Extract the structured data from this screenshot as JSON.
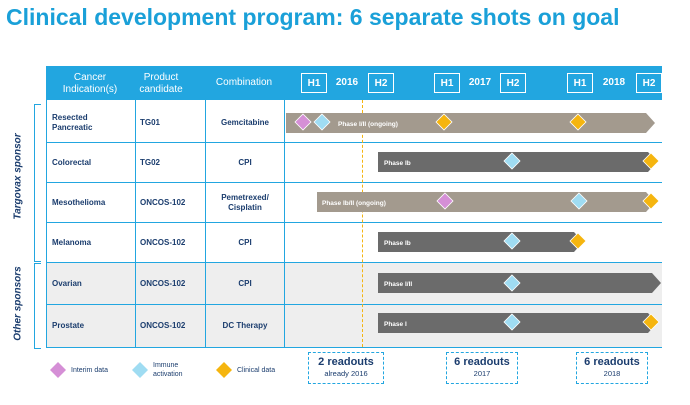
{
  "title": "Clinical development program: 6 separate shots on goal",
  "header": {
    "col_indication": "Cancer Indication(s)",
    "col_product": "Product candidate",
    "col_combination": "Combination",
    "h1_label": "H1",
    "h2_label": "H2",
    "years": [
      "2016",
      "2017",
      "2018"
    ]
  },
  "side_labels": {
    "targovax": "Targovax sponsor",
    "other": "Other sponsors"
  },
  "rows": [
    {
      "indication": "Resected Pancreatic",
      "product": "TG01",
      "combination": "Gemcitabine",
      "phase": "Phase I/II (ongoing)"
    },
    {
      "indication": "Colorectal",
      "product": "TG02",
      "combination": "CPI",
      "phase": "Phase Ib"
    },
    {
      "indication": "Mesothelioma",
      "product": "ONCOS-102",
      "combination": "Pemetrexed/ Cisplatin",
      "phase": "Phase Ib/II (ongoing)"
    },
    {
      "indication": "Melanoma",
      "product": "ONCOS-102",
      "combination": "CPI",
      "phase": "Phase Ib"
    },
    {
      "indication": "Ovarian",
      "product": "ONCOS-102",
      "combination": "CPI",
      "phase": "Phase I/II"
    },
    {
      "indication": "Prostate",
      "product": "ONCOS-102",
      "combination": "DC Therapy",
      "phase": "Phase I"
    }
  ],
  "legend": {
    "interim": "Interim data",
    "immune": "Immune activation",
    "clinical": "Clinical data"
  },
  "readouts": [
    {
      "big": "2 readouts",
      "small": "already 2016"
    },
    {
      "big": "6 readouts",
      "small": "2017"
    },
    {
      "big": "6 readouts",
      "small": "2018"
    }
  ],
  "colors": {
    "header": "#22a6e0",
    "title": "#1aa0d8",
    "bar_grey": "#6b6b6b",
    "bar_tan": "#a39a8e",
    "interim": "#d58fd6",
    "immune": "#9fdcf2",
    "clinical": "#f5b50f"
  }
}
